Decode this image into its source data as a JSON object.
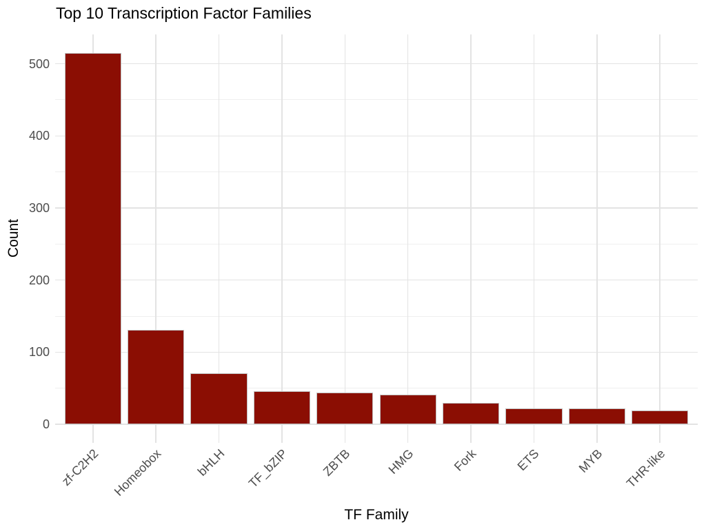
{
  "chart_data": {
    "type": "bar",
    "title": "Top 10 Transcription Factor Families",
    "xlabel": "TF Family",
    "ylabel": "Count",
    "categories": [
      "zf-C2H2",
      "Homeobox",
      "bHLH",
      "TF_bZIP",
      "ZBTB",
      "HMG",
      "Fork",
      "ETS",
      "MYB",
      "THR-like"
    ],
    "values": [
      515,
      131,
      71,
      46,
      44,
      41,
      30,
      22,
      22,
      19
    ],
    "y_major_ticks": [
      0,
      100,
      200,
      300,
      400,
      500
    ],
    "y_minor_ticks": [
      50,
      150,
      250,
      350,
      450
    ],
    "y_range": [
      -25.75,
      540.75
    ],
    "ylim": [
      0,
      515
    ],
    "grid": "on",
    "legend_position": "none",
    "colors": {
      "bar_fill": "#8B0E03",
      "bar_border": "#BEBEBE",
      "grid_major": "#E3E3E3",
      "grid_minor": "#EFEFEF",
      "tick_label": "#4D4D4D",
      "text": "#000000",
      "background": "#FFFFFF"
    }
  }
}
